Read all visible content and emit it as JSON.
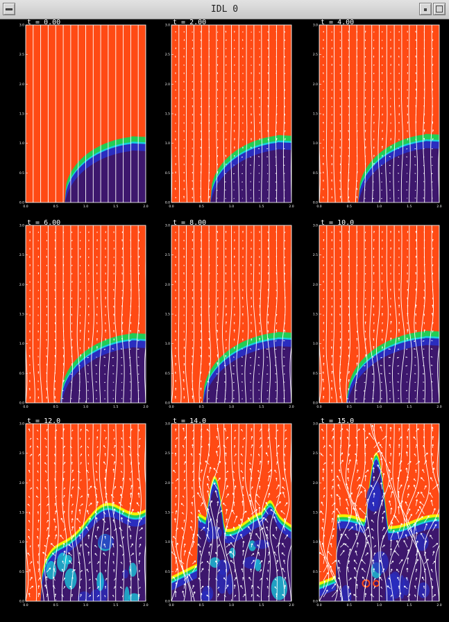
{
  "window": {
    "title": "IDL 0"
  },
  "colors": {
    "field": "#ff4a14",
    "interior": "#3d176d",
    "interior_light": "#2a2dbf",
    "rim_green": "#22cc55",
    "rim_cyan": "#18d0e0",
    "rim_yellow": "#f4f000",
    "vectors": "#ffffff",
    "background": "#000000"
  },
  "axes": {
    "x_ticks": [
      "0.0",
      "0.5",
      "1.0",
      "1.5",
      "2.0"
    ],
    "y_ticks": [
      "0.0",
      "0.5",
      "1.0",
      "1.5",
      "2.0",
      "2.5",
      "3.0"
    ]
  },
  "panels": [
    {
      "label": "t = 0.00",
      "time": 0.0
    },
    {
      "label": "t = 2.00",
      "time": 2.0
    },
    {
      "label": "t = 4.00",
      "time": 4.0
    },
    {
      "label": "t = 6.00",
      "time": 6.0
    },
    {
      "label": "t = 8.00",
      "time": 8.0
    },
    {
      "label": "t = 10.0",
      "time": 10.0
    },
    {
      "label": "t = 12.0",
      "time": 12.0
    },
    {
      "label": "t = 14.0",
      "time": 14.0
    },
    {
      "label": "t = 15.0",
      "time": 15.0
    }
  ]
}
